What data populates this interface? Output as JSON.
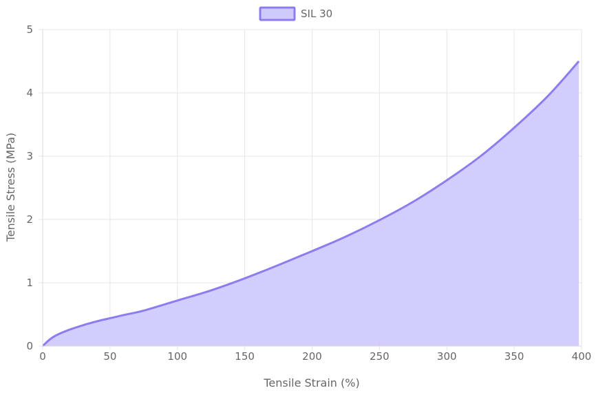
{
  "chart_data": {
    "type": "area",
    "title": "",
    "xlabel": "Tensile Strain (%)",
    "ylabel": "Tensile Stress (MPa)",
    "xlim": [
      0,
      400
    ],
    "ylim": [
      0,
      5
    ],
    "xticks": [
      0,
      50,
      100,
      150,
      200,
      250,
      300,
      350,
      400
    ],
    "yticks": [
      0,
      1,
      2,
      3,
      4,
      5
    ],
    "grid": true,
    "legend_position": "top-center",
    "series": [
      {
        "name": "SIL 30",
        "color": "#8b7cf0",
        "fill": "#cfcafc",
        "x": [
          0,
          5,
          10,
          20,
          30,
          40,
          50,
          60,
          75,
          100,
          125,
          150,
          175,
          200,
          225,
          250,
          275,
          300,
          325,
          350,
          375,
          398
        ],
        "y": [
          0,
          0.1,
          0.17,
          0.26,
          0.33,
          0.39,
          0.44,
          0.49,
          0.56,
          0.72,
          0.88,
          1.07,
          1.28,
          1.5,
          1.73,
          1.99,
          2.28,
          2.62,
          3.0,
          3.45,
          3.95,
          4.5
        ]
      }
    ]
  }
}
